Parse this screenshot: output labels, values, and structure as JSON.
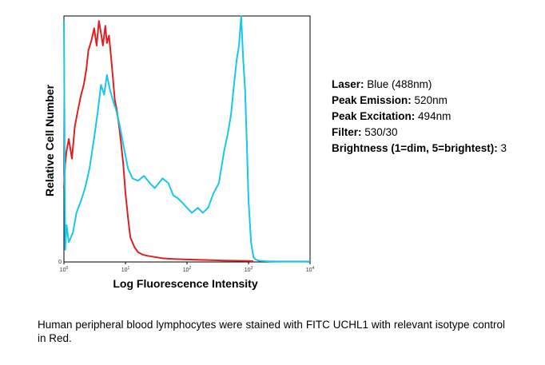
{
  "chart_data": {
    "type": "line",
    "xlabel": "Log Fluorescence Intensity",
    "ylabel": "Relative Cell Number",
    "x_scale": "log",
    "xlim": [
      1,
      10000
    ],
    "y_tick_label": "0",
    "x_tick_labels": [
      "10^0",
      "10^1",
      "10^2",
      "10^3",
      "10^4"
    ],
    "ylim": [
      0,
      100
    ],
    "grid": false,
    "series": [
      {
        "color": "#e02020",
        "x": [
          1,
          1.05,
          1.1,
          1.2,
          1.35,
          1.5,
          1.7,
          1.9,
          2.1,
          2.3,
          2.5,
          2.8,
          3.1,
          3.4,
          3.7,
          4.0,
          4.3,
          4.7,
          5.0,
          5.4,
          5.8,
          6.2,
          6.7,
          7.2,
          7.8,
          8.5,
          9.2,
          10,
          11,
          12,
          14,
          16,
          19,
          23,
          30,
          40,
          60,
          100,
          200,
          400,
          700,
          1000,
          1200
        ],
        "y": [
          30,
          40,
          45,
          50,
          42,
          55,
          62,
          68,
          72,
          78,
          86,
          90,
          95,
          88,
          98,
          93,
          88,
          96,
          89,
          92,
          84,
          76,
          66,
          62,
          56,
          48,
          40,
          28,
          18,
          10,
          6,
          4,
          3,
          2.5,
          2,
          1.5,
          1.2,
          1,
          0.8,
          0.6,
          0.5,
          0.4,
          0.3
        ]
      },
      {
        "color": "#17c8e8",
        "x": [
          1,
          1.05,
          1.1,
          1.2,
          1.4,
          1.6,
          1.9,
          2.2,
          2.6,
          3.0,
          3.5,
          4.0,
          4.5,
          5.0,
          5.6,
          6.2,
          7.0,
          8.0,
          9.5,
          11,
          13,
          16,
          20,
          25,
          30,
          40,
          50,
          60,
          70,
          85,
          100,
          120,
          150,
          180,
          220,
          270,
          330,
          400,
          460,
          520,
          580,
          640,
          700,
          760,
          820,
          880,
          940,
          1000,
          1100,
          1200,
          1300,
          1500,
          2000,
          3000,
          5000,
          10000
        ],
        "y": [
          98,
          5,
          15,
          8,
          12,
          20,
          25,
          30,
          38,
          48,
          60,
          72,
          68,
          76,
          70,
          66,
          62,
          56,
          46,
          38,
          34,
          33,
          35,
          32,
          30,
          34,
          32,
          27,
          26,
          24,
          22,
          20,
          22,
          20,
          22,
          28,
          32,
          45,
          52,
          60,
          72,
          82,
          88,
          100,
          82,
          70,
          48,
          25,
          8,
          2,
          1,
          0.5,
          0.3,
          0.2,
          0.2,
          0.2
        ]
      }
    ]
  },
  "info": {
    "laser_label": "Laser:",
    "laser_value": " Blue (488nm)",
    "emission_label": "Peak Emission:",
    "emission_value": " 520nm",
    "excitation_label": "Peak Excitation:",
    "excitation_value": " 494nm",
    "filter_label": "Filter:",
    "filter_value": " 530/30",
    "brightness_label": "Brightness (1=dim, 5=brightest):",
    "brightness_value": " 3"
  },
  "caption": "Human peripheral blood lymphocytes were stained with FITC UCHL1 with relevant isotype control in Red."
}
